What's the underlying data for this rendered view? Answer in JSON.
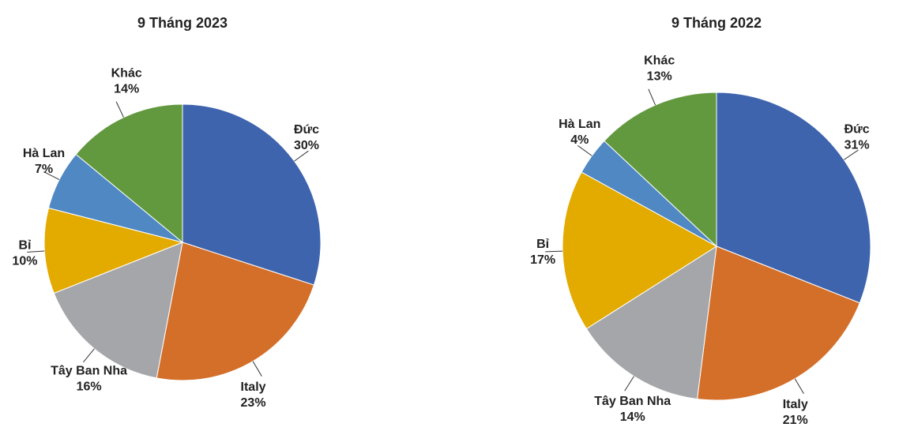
{
  "chart_data": [
    {
      "type": "pie",
      "title": "9 Tháng 2023",
      "categories": [
        "Đức",
        "Italy",
        "Tây Ban Nha",
        "Bỉ",
        "Hà Lan",
        "Khác"
      ],
      "values": [
        30,
        23,
        16,
        10,
        7,
        14
      ],
      "value_labels": [
        "30%",
        "23%",
        "16%",
        "10%",
        "7%",
        "14%"
      ],
      "colors": [
        "#3f64ae",
        "#d46f2a",
        "#a5a6aa",
        "#e3aa00",
        "#4f88c2",
        "#62993e"
      ]
    },
    {
      "type": "pie",
      "title": "9 Tháng 2022",
      "categories": [
        "Đức",
        "Italy",
        "Tây Ban Nha",
        "Bỉ",
        "Hà Lan",
        "Khác"
      ],
      "values": [
        31,
        21,
        14,
        17,
        4,
        13
      ],
      "value_labels": [
        "31%",
        "21%",
        "14%",
        "17%",
        "4%",
        "13%"
      ],
      "colors": [
        "#3f64ae",
        "#d46f2a",
        "#a5a6aa",
        "#e3aa00",
        "#4f88c2",
        "#62993e"
      ]
    }
  ]
}
